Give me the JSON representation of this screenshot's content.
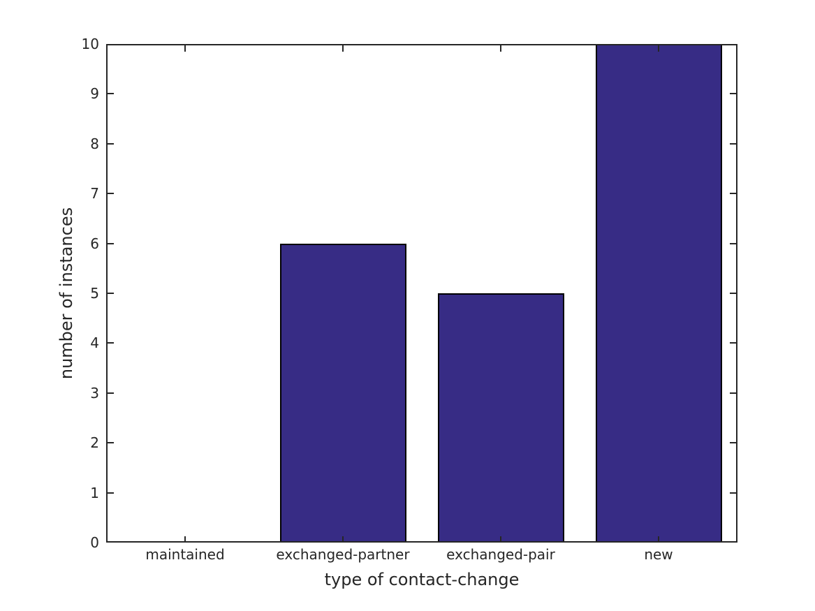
{
  "chart_data": {
    "type": "bar",
    "xlabel": "type of contact-change",
    "ylabel": "number of instances",
    "categories": [
      "maintained",
      "exchanged-partner",
      "exchanged-pair",
      "new"
    ],
    "values": [
      0,
      6,
      5,
      10
    ],
    "ylim": [
      0,
      10
    ],
    "yticks": [
      0,
      1,
      2,
      3,
      4,
      5,
      6,
      7,
      8,
      9,
      10
    ],
    "grid": false,
    "legend_position": "none",
    "bar_width_fraction": 0.8,
    "colors": {
      "bar_fill": "#372c85",
      "bar_edge": "#000000",
      "axis": "#262626",
      "text": "#262626",
      "background": "#ffffff"
    }
  }
}
